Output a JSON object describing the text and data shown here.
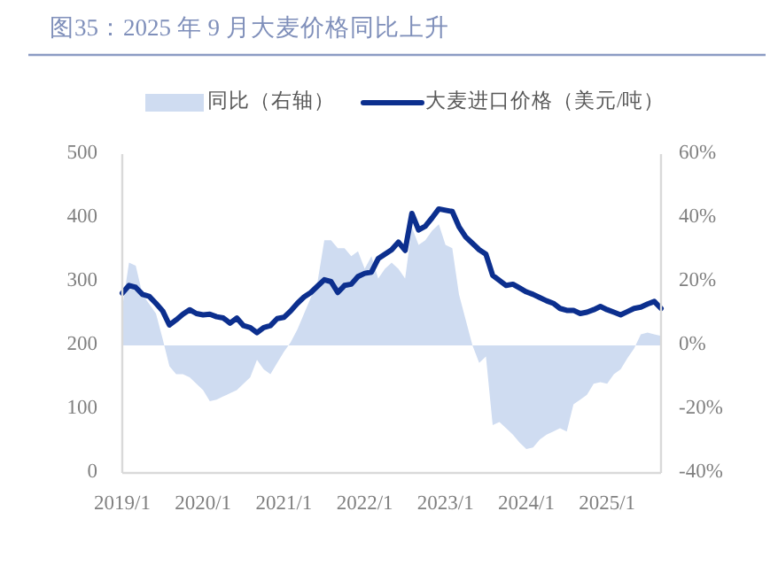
{
  "chart_data": {
    "type": "line",
    "title": "图35：2025 年 9 月大麦价格同比上升",
    "x": [
      "2019-01",
      "2019-02",
      "2019-03",
      "2019-04",
      "2019-05",
      "2019-06",
      "2019-07",
      "2019-08",
      "2019-09",
      "2019-10",
      "2019-11",
      "2019-12",
      "2020-01",
      "2020-02",
      "2020-03",
      "2020-04",
      "2020-05",
      "2020-06",
      "2020-07",
      "2020-08",
      "2020-09",
      "2020-10",
      "2020-11",
      "2020-12",
      "2021-01",
      "2021-02",
      "2021-03",
      "2021-04",
      "2021-05",
      "2021-06",
      "2021-07",
      "2021-08",
      "2021-09",
      "2021-10",
      "2021-11",
      "2021-12",
      "2022-01",
      "2022-02",
      "2022-03",
      "2022-04",
      "2022-05",
      "2022-06",
      "2022-07",
      "2022-08",
      "2022-09",
      "2022-10",
      "2022-11",
      "2022-12",
      "2023-01",
      "2023-02",
      "2023-03",
      "2023-04",
      "2023-05",
      "2023-06",
      "2023-07",
      "2023-08",
      "2023-09",
      "2023-10",
      "2023-11",
      "2023-12",
      "2024-01",
      "2024-02",
      "2024-03",
      "2024-04",
      "2024-05",
      "2024-06",
      "2024-07",
      "2024-08",
      "2024-09",
      "2024-10",
      "2024-11",
      "2024-12",
      "2025-01",
      "2025-02",
      "2025-03",
      "2025-04",
      "2025-05",
      "2025-06",
      "2025-07",
      "2025-08",
      "2025-09"
    ],
    "series": [
      {
        "name": "同比（右轴）",
        "type": "area",
        "axis": "y2",
        "color": "#cfdcf1",
        "values": [
          12,
          26,
          25,
          16,
          13,
          10,
          2,
          -6.5,
          -9,
          -9,
          -10,
          -12,
          -14,
          -17.5,
          -17,
          -16,
          -15,
          -14,
          -12,
          -10,
          -4.5,
          -7.5,
          -9,
          -5.5,
          -2,
          1,
          5,
          10,
          15,
          20,
          33,
          33,
          30.5,
          30.5,
          28,
          29.5,
          24,
          28,
          21,
          24,
          26,
          24,
          21,
          37,
          31.5,
          33,
          36,
          38,
          31.5,
          30.5,
          16,
          8,
          0,
          -5.5,
          -3.5,
          -25,
          -24,
          -26,
          -28,
          -30.5,
          -32.5,
          -32,
          -29.5,
          -28,
          -27,
          -26,
          -27,
          -18.5,
          -17,
          -15.5,
          -12,
          -11.5,
          -12,
          -9,
          -7.5,
          -4,
          -1,
          3.5,
          4,
          3.5,
          3
        ]
      },
      {
        "name": "大麦进口价格（美元/吨）",
        "color": "#0c2f8e",
        "values": [
          282,
          294,
          291,
          280,
          277,
          266,
          254,
          232,
          240,
          249,
          256,
          250,
          248,
          249,
          245,
          243,
          235,
          243,
          231,
          228,
          220,
          228,
          231,
          242,
          244,
          254,
          266,
          276,
          283,
          293,
          303,
          300,
          283,
          294,
          296,
          308,
          313,
          315,
          336,
          343,
          350,
          362,
          349,
          407,
          381,
          387,
          400,
          414,
          412,
          410,
          386,
          370,
          360,
          350,
          343,
          310,
          302,
          294,
          296,
          290,
          284,
          280,
          275,
          270,
          266,
          258,
          255,
          255,
          250,
          252,
          256,
          261,
          256,
          252,
          248,
          253,
          258,
          260,
          265,
          269,
          258
        ]
      }
    ],
    "xlim": [
      "2019-01",
      "2025-09"
    ],
    "xticks": [
      {
        "value": "2019-01",
        "label": "2019/1"
      },
      {
        "value": "2020-01",
        "label": "2020/1"
      },
      {
        "value": "2021-01",
        "label": "2021/1"
      },
      {
        "value": "2022-01",
        "label": "2022/1"
      },
      {
        "value": "2023-01",
        "label": "2023/1"
      },
      {
        "value": "2024-01",
        "label": "2024/1"
      },
      {
        "value": "2025-01",
        "label": "2025/1"
      }
    ],
    "ylim": [
      0,
      500
    ],
    "yticks": [
      0,
      100,
      200,
      300,
      400,
      500
    ],
    "y2lim": [
      -40,
      60
    ],
    "y2ticks": [
      {
        "value": -40,
        "label": "-40%"
      },
      {
        "value": -20,
        "label": "-20%"
      },
      {
        "value": 0,
        "label": "0%"
      },
      {
        "value": 20,
        "label": "20%"
      },
      {
        "value": 40,
        "label": "40%"
      },
      {
        "value": 60,
        "label": "60%"
      }
    ],
    "legend": "top",
    "grid": false
  }
}
